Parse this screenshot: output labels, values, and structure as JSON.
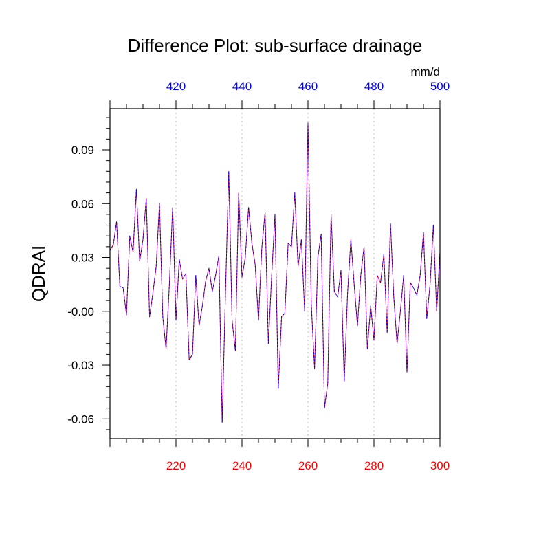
{
  "chart_data": {
    "type": "line",
    "title": "Difference Plot: sub-surface drainage",
    "units": "mm/d",
    "ylabel": "QDRAI",
    "ylim": [
      -0.071,
      0.113
    ],
    "yticks": [
      -0.06,
      -0.03,
      -0.0,
      0.03,
      0.06,
      0.09
    ],
    "ytick_labels": [
      "-0.06",
      "-0.03",
      "-0.00",
      "0.03",
      "0.06",
      "0.09"
    ],
    "x_bottom": {
      "range": [
        200,
        300
      ],
      "ticks": [
        220,
        240,
        260,
        280,
        300
      ],
      "tick_labels": [
        "220",
        "240",
        "260",
        "280",
        "300"
      ],
      "color": "#ff0000"
    },
    "x_top": {
      "range": [
        400,
        500
      ],
      "ticks": [
        420,
        440,
        460,
        480,
        500
      ],
      "tick_labels": [
        "420",
        "440",
        "460",
        "480",
        "500"
      ],
      "color": "#0000ff"
    },
    "grid": "vertical dotted at major x ticks",
    "series": [
      {
        "color": "#ff0000",
        "style": "solid",
        "x": [
          200,
          201,
          202,
          203,
          204,
          205,
          206,
          207,
          208,
          209,
          210,
          211,
          212,
          213,
          214,
          215,
          216,
          217,
          218,
          219,
          220,
          221,
          222,
          223,
          224,
          225,
          226,
          227,
          228,
          229,
          230,
          231,
          232,
          233,
          234,
          235,
          236,
          237,
          238,
          239,
          240,
          241,
          242,
          243,
          244,
          245,
          246,
          247,
          248,
          249,
          250,
          251,
          252,
          253,
          254,
          255,
          256,
          257,
          258,
          259,
          260,
          261,
          262,
          263,
          264,
          265,
          266,
          267,
          268,
          269,
          270,
          271,
          272,
          273,
          274,
          275,
          276,
          277,
          278,
          279,
          280,
          281,
          282,
          283,
          284,
          285,
          286,
          287,
          288,
          289,
          290,
          291,
          292,
          293,
          294,
          295,
          296,
          297,
          298,
          299,
          300
        ],
        "values": [
          0.034,
          0.037,
          0.05,
          0.014,
          0.013,
          -0.002,
          0.042,
          0.033,
          0.068,
          0.028,
          0.04,
          0.063,
          -0.003,
          0.01,
          0.025,
          0.06,
          -0.003,
          -0.021,
          0.015,
          0.058,
          -0.005,
          0.029,
          0.018,
          0.021,
          -0.027,
          -0.024,
          0.02,
          -0.008,
          0.003,
          0.017,
          0.024,
          0.011,
          0.02,
          0.031,
          -0.062,
          0.01,
          0.078,
          -0.005,
          -0.022,
          0.066,
          0.019,
          0.03,
          0.058,
          0.038,
          0.026,
          -0.005,
          0.035,
          0.055,
          -0.018,
          0.02,
          0.054,
          -0.043,
          -0.003,
          -0.001,
          0.038,
          0.036,
          0.066,
          0.025,
          0.04,
          0.0,
          0.105,
          0.004,
          -0.032,
          0.03,
          0.043,
          -0.054,
          -0.04,
          0.054,
          0.011,
          0.008,
          0.023,
          -0.039,
          0.01,
          0.04,
          0.015,
          -0.008,
          0.02,
          0.036,
          -0.021,
          0.003,
          -0.016,
          0.02,
          0.016,
          0.032,
          -0.012,
          0.049,
          0.008,
          -0.018,
          0.0,
          0.02,
          -0.034,
          0.016,
          0.013,
          0.009,
          0.02,
          0.044,
          -0.004,
          0.015,
          0.048,
          0.0,
          0.033
        ]
      },
      {
        "color": "#0000ff",
        "style": "dashed",
        "x": [
          400,
          401,
          402,
          403,
          404,
          405,
          406,
          407,
          408,
          409,
          410,
          411,
          412,
          413,
          414,
          415,
          416,
          417,
          418,
          419,
          420,
          421,
          422,
          423,
          424,
          425,
          426,
          427,
          428,
          429,
          430,
          431,
          432,
          433,
          434,
          435,
          436,
          437,
          438,
          439,
          440,
          441,
          442,
          443,
          444,
          445,
          446,
          447,
          448,
          449,
          450,
          451,
          452,
          453,
          454,
          455,
          456,
          457,
          458,
          459,
          460,
          461,
          462,
          463,
          464,
          465,
          466,
          467,
          468,
          469,
          470,
          471,
          472,
          473,
          474,
          475,
          476,
          477,
          478,
          479,
          480,
          481,
          482,
          483,
          484,
          485,
          486,
          487,
          488,
          489,
          490,
          491,
          492,
          493,
          494,
          495,
          496,
          497,
          498,
          499,
          500
        ],
        "values": [
          0.034,
          0.037,
          0.05,
          0.014,
          0.013,
          -0.002,
          0.042,
          0.033,
          0.068,
          0.028,
          0.04,
          0.063,
          -0.003,
          0.01,
          0.025,
          0.06,
          -0.003,
          -0.021,
          0.015,
          0.058,
          -0.005,
          0.029,
          0.018,
          0.021,
          -0.027,
          -0.024,
          0.02,
          -0.008,
          0.003,
          0.017,
          0.024,
          0.011,
          0.02,
          0.031,
          -0.062,
          0.01,
          0.078,
          -0.005,
          -0.022,
          0.066,
          0.019,
          0.03,
          0.058,
          0.038,
          0.026,
          -0.005,
          0.035,
          0.055,
          -0.018,
          0.02,
          0.054,
          -0.043,
          -0.003,
          -0.001,
          0.038,
          0.036,
          0.066,
          0.025,
          0.04,
          0.0,
          0.105,
          0.004,
          -0.032,
          0.03,
          0.043,
          -0.054,
          -0.04,
          0.054,
          0.011,
          0.008,
          0.023,
          -0.039,
          0.01,
          0.04,
          0.015,
          -0.008,
          0.02,
          0.036,
          -0.021,
          0.003,
          -0.016,
          0.02,
          0.016,
          0.032,
          -0.012,
          0.049,
          0.008,
          -0.018,
          0.0,
          0.02,
          -0.034,
          0.016,
          0.013,
          0.009,
          0.02,
          0.044,
          -0.004,
          0.015,
          0.048,
          0.0,
          0.033
        ]
      }
    ]
  }
}
